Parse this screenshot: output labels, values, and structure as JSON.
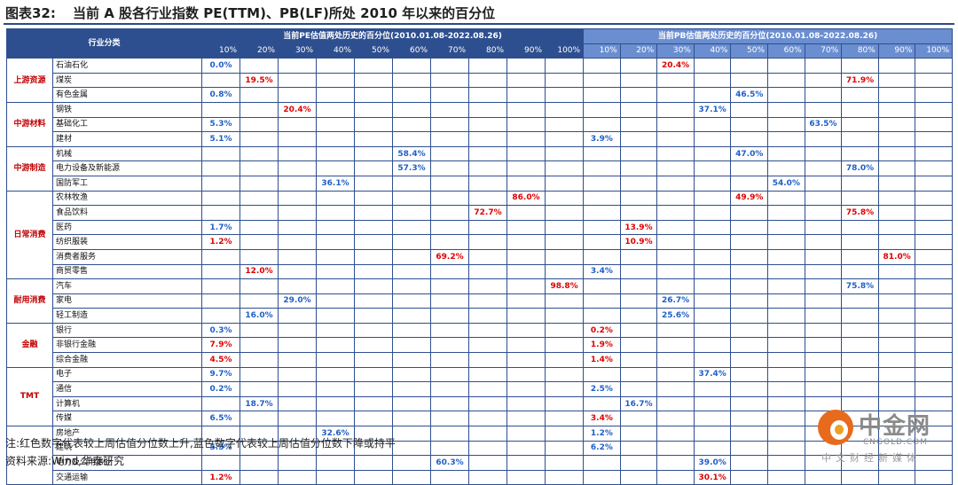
{
  "title": {
    "label": "图表32:",
    "text": "当前 A 股各行业指数 PE(TTM)、PB(LF)所处 2010 年以来的百分位"
  },
  "table": {
    "category_header": "行业分类",
    "pe_header": "当前PE估值两处历史的百分位(2010.01.08-2022.08.26)",
    "pb_header": "当前PB估值两处历史的百分位(2010.01.08-2022.08.26)",
    "percentiles": [
      "10%",
      "20%",
      "30%",
      "40%",
      "50%",
      "60%",
      "70%",
      "80%",
      "90%",
      "100%"
    ],
    "groups": [
      {
        "name": "上游资源",
        "rows": [
          {
            "industry": "石油石化",
            "pe": {
              "value": "0.0%",
              "bin": 0,
              "color": "down"
            },
            "pb": {
              "value": "20.4%",
              "bin": 2,
              "color": "up"
            }
          },
          {
            "industry": "煤炭",
            "pe": {
              "value": "19.5%",
              "bin": 1,
              "color": "up"
            },
            "pb": {
              "value": "71.9%",
              "bin": 7,
              "color": "up"
            }
          },
          {
            "industry": "有色金属",
            "pe": {
              "value": "0.8%",
              "bin": 0,
              "color": "down"
            },
            "pb": {
              "value": "46.5%",
              "bin": 4,
              "color": "down"
            }
          }
        ]
      },
      {
        "name": "中游材料",
        "rows": [
          {
            "industry": "钢铁",
            "pe": {
              "value": "20.4%",
              "bin": 2,
              "color": "up"
            },
            "pb": {
              "value": "37.1%",
              "bin": 3,
              "color": "down"
            }
          },
          {
            "industry": "基础化工",
            "pe": {
              "value": "5.3%",
              "bin": 0,
              "color": "down"
            },
            "pb": {
              "value": "63.5%",
              "bin": 6,
              "color": "down"
            }
          },
          {
            "industry": "建材",
            "pe": {
              "value": "5.1%",
              "bin": 0,
              "color": "down"
            },
            "pb": {
              "value": "3.9%",
              "bin": 0,
              "color": "down"
            }
          }
        ]
      },
      {
        "name": "中游制造",
        "rows": [
          {
            "industry": "机械",
            "pe": {
              "value": "58.4%",
              "bin": 5,
              "color": "down"
            },
            "pb": {
              "value": "47.0%",
              "bin": 4,
              "color": "down"
            }
          },
          {
            "industry": "电力设备及新能源",
            "pe": {
              "value": "57.3%",
              "bin": 5,
              "color": "down"
            },
            "pb": {
              "value": "78.0%",
              "bin": 7,
              "color": "down"
            }
          },
          {
            "industry": "国防军工",
            "pe": {
              "value": "36.1%",
              "bin": 3,
              "color": "down"
            },
            "pb": {
              "value": "54.0%",
              "bin": 5,
              "color": "down"
            }
          }
        ]
      },
      {
        "name": "日常消费",
        "rows": [
          {
            "industry": "农林牧渔",
            "pe": {
              "value": "86.0%",
              "bin": 8,
              "color": "up"
            },
            "pb": {
              "value": "49.9%",
              "bin": 4,
              "color": "up"
            }
          },
          {
            "industry": "食品饮料",
            "pe": {
              "value": "72.7%",
              "bin": 7,
              "color": "up"
            },
            "pb": {
              "value": "75.8%",
              "bin": 7,
              "color": "up"
            }
          },
          {
            "industry": "医药",
            "pe": {
              "value": "1.7%",
              "bin": 0,
              "color": "down"
            },
            "pb": {
              "value": "13.9%",
              "bin": 1,
              "color": "up"
            }
          },
          {
            "industry": "纺织服装",
            "pe": {
              "value": "1.2%",
              "bin": 0,
              "color": "up"
            },
            "pb": {
              "value": "10.9%",
              "bin": 1,
              "color": "up"
            }
          },
          {
            "industry": "消费者服务",
            "pe": {
              "value": "69.2%",
              "bin": 6,
              "color": "up"
            },
            "pb": {
              "value": "81.0%",
              "bin": 8,
              "color": "up"
            }
          },
          {
            "industry": "商贸零售",
            "pe": {
              "value": "12.0%",
              "bin": 1,
              "color": "up"
            },
            "pb": {
              "value": "3.4%",
              "bin": 0,
              "color": "down"
            }
          }
        ]
      },
      {
        "name": "耐用消费",
        "rows": [
          {
            "industry": "汽车",
            "pe": {
              "value": "98.8%",
              "bin": 9,
              "color": "up"
            },
            "pb": {
              "value": "75.8%",
              "bin": 7,
              "color": "down"
            }
          },
          {
            "industry": "家电",
            "pe": {
              "value": "29.0%",
              "bin": 2,
              "color": "down"
            },
            "pb": {
              "value": "26.7%",
              "bin": 2,
              "color": "down"
            }
          },
          {
            "industry": "轻工制造",
            "pe": {
              "value": "16.0%",
              "bin": 1,
              "color": "down"
            },
            "pb": {
              "value": "25.6%",
              "bin": 2,
              "color": "down"
            }
          }
        ]
      },
      {
        "name": "金融",
        "rows": [
          {
            "industry": "银行",
            "pe": {
              "value": "0.3%",
              "bin": 0,
              "color": "down"
            },
            "pb": {
              "value": "0.2%",
              "bin": 0,
              "color": "up"
            }
          },
          {
            "industry": "非银行金融",
            "pe": {
              "value": "7.9%",
              "bin": 0,
              "color": "up"
            },
            "pb": {
              "value": "1.9%",
              "bin": 0,
              "color": "up"
            }
          },
          {
            "industry": "综合金融",
            "pe": {
              "value": "4.5%",
              "bin": 0,
              "color": "up"
            },
            "pb": {
              "value": "1.4%",
              "bin": 0,
              "color": "up"
            }
          }
        ]
      },
      {
        "name": "TMT",
        "rows": [
          {
            "industry": "电子",
            "pe": {
              "value": "9.7%",
              "bin": 0,
              "color": "down"
            },
            "pb": {
              "value": "37.4%",
              "bin": 3,
              "color": "down"
            }
          },
          {
            "industry": "通信",
            "pe": {
              "value": "0.2%",
              "bin": 0,
              "color": "down"
            },
            "pb": {
              "value": "2.5%",
              "bin": 0,
              "color": "down"
            }
          },
          {
            "industry": "计算机",
            "pe": {
              "value": "18.7%",
              "bin": 1,
              "color": "down"
            },
            "pb": {
              "value": "16.7%",
              "bin": 1,
              "color": "down"
            }
          },
          {
            "industry": "传媒",
            "pe": {
              "value": "6.5%",
              "bin": 0,
              "color": "down"
            },
            "pb": {
              "value": "3.4%",
              "bin": 0,
              "color": "up"
            }
          }
        ]
      },
      {
        "name": "",
        "rows": [
          {
            "industry": "房地产",
            "pe": {
              "value": "32.6%",
              "bin": 3,
              "color": "down"
            },
            "pb": {
              "value": "1.2%",
              "bin": 0,
              "color": "down"
            }
          },
          {
            "industry": "建筑",
            "pe": {
              "value": "5.5%",
              "bin": 0,
              "color": "down"
            },
            "pb": {
              "value": "6.2%",
              "bin": 0,
              "color": "down"
            }
          },
          {
            "industry": "电力及公用事业",
            "pe": {
              "value": "60.3%",
              "bin": 6,
              "color": "down"
            },
            "pb": {
              "value": "39.0%",
              "bin": 3,
              "color": "down"
            }
          },
          {
            "industry": "交通运输",
            "pe": {
              "value": "1.2%",
              "bin": 0,
              "color": "up"
            },
            "pb": {
              "value": "30.1%",
              "bin": 3,
              "color": "up"
            }
          }
        ]
      }
    ],
    "colors": {
      "up": "#e00000",
      "down": "#1f5fc8",
      "header": "#2e4f8f",
      "pb_header": "#6a8ed0",
      "group": "#c00000"
    }
  },
  "footnotes": {
    "note": "注:红色数字代表较上周估值分位数上升,蓝色数字代表较上周估值分位数下降或持平",
    "source": "资料来源:Wind,华泰研究"
  },
  "logo": {
    "name": "中金网",
    "site": "CNGOLD.COM",
    "slogan": "中文财经新媒体"
  }
}
